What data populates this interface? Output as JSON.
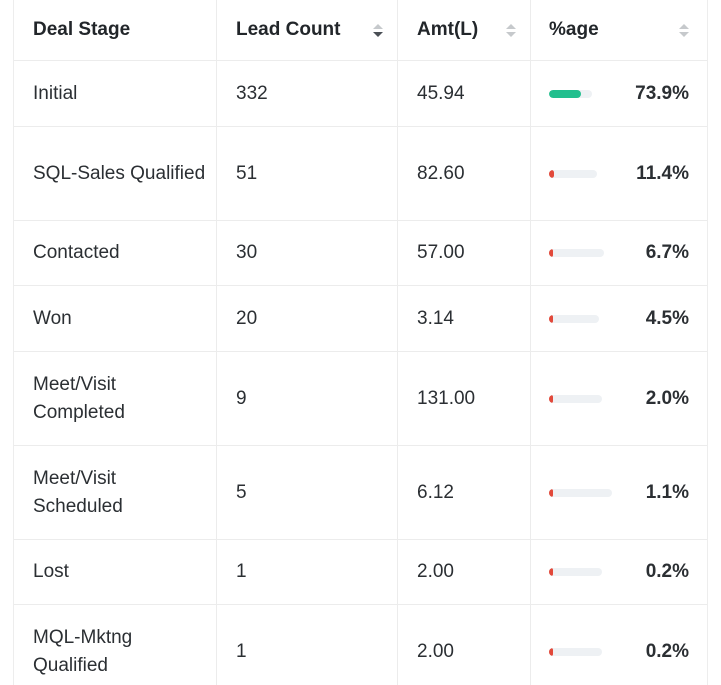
{
  "columns": [
    {
      "label": "Deal Stage",
      "sortable": false,
      "sort": "none"
    },
    {
      "label": "Lead Count",
      "sortable": true,
      "sort": "desc"
    },
    {
      "label": "Amt(L)",
      "sortable": true,
      "sort": "none"
    },
    {
      "label": "%age",
      "sortable": true,
      "sort": "none"
    }
  ],
  "colors": {
    "bar_high": "#22bf8e",
    "bar_low": "#e2493a",
    "track": "#eef1f4"
  },
  "rows": [
    {
      "stage": "Initial",
      "lead_count": "332",
      "amount": "45.94",
      "percent": "73.9%",
      "fraction": 0.739,
      "level": "high"
    },
    {
      "stage": "SQL-Sales Qualified",
      "lead_count": "51",
      "amount": "82.60",
      "percent": "11.4%",
      "fraction": 0.114,
      "level": "low"
    },
    {
      "stage": "Contacted",
      "lead_count": "30",
      "amount": "57.00",
      "percent": "6.7%",
      "fraction": 0.067,
      "level": "low"
    },
    {
      "stage": "Won",
      "lead_count": "20",
      "amount": "3.14",
      "percent": "4.5%",
      "fraction": 0.045,
      "level": "low"
    },
    {
      "stage": "Meet/Visit Completed",
      "lead_count": "9",
      "amount": "131.00",
      "percent": "2.0%",
      "fraction": 0.02,
      "level": "low"
    },
    {
      "stage": "Meet/Visit Scheduled",
      "lead_count": "5",
      "amount": "6.12",
      "percent": "1.1%",
      "fraction": 0.011,
      "level": "low"
    },
    {
      "stage": "Lost",
      "lead_count": "1",
      "amount": "2.00",
      "percent": "0.2%",
      "fraction": 0.002,
      "level": "low"
    },
    {
      "stage": "MQL-Mktng Qualified",
      "lead_count": "1",
      "amount": "2.00",
      "percent": "0.2%",
      "fraction": 0.002,
      "level": "low"
    }
  ]
}
